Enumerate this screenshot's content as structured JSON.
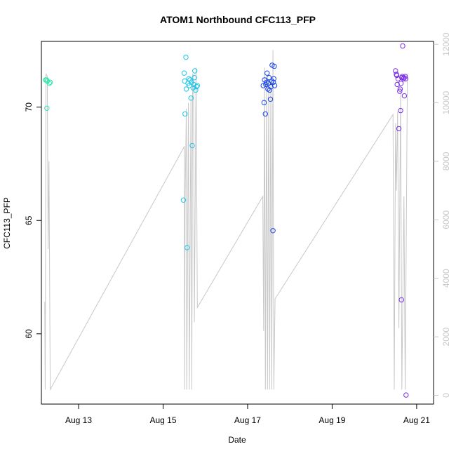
{
  "chart_data": {
    "type": "scatter",
    "title": "ATOM1 Northbound CFC113_PFP",
    "xlabel": "Date",
    "ylabel": "CFC113_PFP",
    "x_ticks": [
      "Aug 13",
      "Aug 15",
      "Aug 17",
      "Aug 19",
      "Aug 21"
    ],
    "y_left_ticks": [
      "60",
      "65",
      "70"
    ],
    "y_right_ticks": [
      "0",
      "2000",
      "4000",
      "6000",
      "8000",
      "10000",
      "12000"
    ],
    "y_left_range": [
      56.9,
      72.9
    ],
    "y_right_range": [
      -300,
      12100
    ],
    "x_range_days": [
      12.12,
      21.4
    ],
    "points": [
      {
        "x": 12.22,
        "y": 71.2,
        "color": "#29e8ac"
      },
      {
        "x": 12.24,
        "y": 71.2,
        "color": "#29e8ac"
      },
      {
        "x": 12.26,
        "y": 71.15,
        "color": "#29e8ac"
      },
      {
        "x": 12.25,
        "y": 69.95,
        "color": "#34e6b8"
      },
      {
        "x": 12.31,
        "y": 71.05,
        "color": "#29e8ac"
      },
      {
        "x": 12.33,
        "y": 71.1,
        "color": "#29e8ac"
      },
      {
        "x": 15.48,
        "y": 65.9,
        "color": "#1ec6e8"
      },
      {
        "x": 15.5,
        "y": 71.5,
        "color": "#1ec6e8"
      },
      {
        "x": 15.51,
        "y": 71.15,
        "color": "#1ec6e8"
      },
      {
        "x": 15.52,
        "y": 69.7,
        "color": "#1ec6e8"
      },
      {
        "x": 15.54,
        "y": 72.2,
        "color": "#1ec6e8"
      },
      {
        "x": 15.55,
        "y": 70.8,
        "color": "#1ec6e8"
      },
      {
        "x": 15.57,
        "y": 63.8,
        "color": "#1ec6e8"
      },
      {
        "x": 15.59,
        "y": 71.05,
        "color": "#1ec6e8"
      },
      {
        "x": 15.61,
        "y": 71.25,
        "color": "#1ec6e8"
      },
      {
        "x": 15.62,
        "y": 70.95,
        "color": "#1ec6e8"
      },
      {
        "x": 15.64,
        "y": 71.2,
        "color": "#1ec6e8"
      },
      {
        "x": 15.66,
        "y": 70.4,
        "color": "#1ec6e8"
      },
      {
        "x": 15.67,
        "y": 71.1,
        "color": "#1ec6e8"
      },
      {
        "x": 15.69,
        "y": 68.3,
        "color": "#1ec6e8"
      },
      {
        "x": 15.71,
        "y": 70.85,
        "color": "#1ec6e8"
      },
      {
        "x": 15.72,
        "y": 71.0,
        "color": "#1ec6e8"
      },
      {
        "x": 15.74,
        "y": 71.3,
        "color": "#1ec6e8"
      },
      {
        "x": 15.75,
        "y": 71.6,
        "color": "#1ec6e8"
      },
      {
        "x": 15.77,
        "y": 70.75,
        "color": "#1ec6e8"
      },
      {
        "x": 15.79,
        "y": 70.9,
        "color": "#1ec6e8"
      },
      {
        "x": 15.81,
        "y": 70.95,
        "color": "#1ec6e8"
      },
      {
        "x": 17.37,
        "y": 70.95,
        "color": "#1a44e6"
      },
      {
        "x": 17.39,
        "y": 70.2,
        "color": "#1a44e6"
      },
      {
        "x": 17.4,
        "y": 71.2,
        "color": "#1a44e6"
      },
      {
        "x": 17.42,
        "y": 69.7,
        "color": "#1a44e6"
      },
      {
        "x": 17.43,
        "y": 71.0,
        "color": "#1a44e6"
      },
      {
        "x": 17.45,
        "y": 71.1,
        "color": "#1a44e6"
      },
      {
        "x": 17.46,
        "y": 71.5,
        "color": "#1a44e6"
      },
      {
        "x": 17.48,
        "y": 70.8,
        "color": "#1a44e6"
      },
      {
        "x": 17.49,
        "y": 71.05,
        "color": "#1a44e6"
      },
      {
        "x": 17.51,
        "y": 71.3,
        "color": "#1a44e6"
      },
      {
        "x": 17.52,
        "y": 70.75,
        "color": "#1a44e6"
      },
      {
        "x": 17.54,
        "y": 70.35,
        "color": "#1a44e6"
      },
      {
        "x": 17.55,
        "y": 70.9,
        "color": "#1a44e6"
      },
      {
        "x": 17.57,
        "y": 71.15,
        "color": "#1a44e6"
      },
      {
        "x": 17.58,
        "y": 71.85,
        "color": "#1a44e6"
      },
      {
        "x": 17.6,
        "y": 64.55,
        "color": "#1a44e6"
      },
      {
        "x": 17.61,
        "y": 71.1,
        "color": "#1a44e6"
      },
      {
        "x": 17.62,
        "y": 71.25,
        "color": "#1a44e6"
      },
      {
        "x": 17.63,
        "y": 71.8,
        "color": "#1a44e6"
      },
      {
        "x": 17.64,
        "y": 70.95,
        "color": "#1a44e6"
      },
      {
        "x": 20.5,
        "y": 71.6,
        "color": "#7a2ee8"
      },
      {
        "x": 20.52,
        "y": 71.45,
        "color": "#7a2ee8"
      },
      {
        "x": 20.53,
        "y": 71.4,
        "color": "#7a2ee8"
      },
      {
        "x": 20.54,
        "y": 71.0,
        "color": "#7a2ee8"
      },
      {
        "x": 20.56,
        "y": 71.25,
        "color": "#7a2ee8"
      },
      {
        "x": 20.58,
        "y": 69.05,
        "color": "#7a2ee8"
      },
      {
        "x": 20.6,
        "y": 70.7,
        "color": "#7a2ee8"
      },
      {
        "x": 20.61,
        "y": 70.8,
        "color": "#7a2ee8"
      },
      {
        "x": 20.62,
        "y": 69.85,
        "color": "#7a2ee8"
      },
      {
        "x": 20.63,
        "y": 71.05,
        "color": "#7a2ee8"
      },
      {
        "x": 20.64,
        "y": 61.5,
        "color": "#7a2ee8"
      },
      {
        "x": 20.65,
        "y": 71.3,
        "color": "#7a2ee8"
      },
      {
        "x": 20.66,
        "y": 71.35,
        "color": "#7a2ee8"
      },
      {
        "x": 20.67,
        "y": 72.7,
        "color": "#7a2ee8"
      },
      {
        "x": 20.69,
        "y": 71.25,
        "color": "#7a2ee8"
      },
      {
        "x": 20.7,
        "y": 71.3,
        "color": "#7a2ee8"
      },
      {
        "x": 20.71,
        "y": 70.5,
        "color": "#7a2ee8"
      },
      {
        "x": 20.73,
        "y": 71.35,
        "color": "#7a2ee8"
      },
      {
        "x": 20.74,
        "y": 71.25,
        "color": "#7a2ee8"
      },
      {
        "x": 20.75,
        "y": 57.3,
        "color": "#7a2ee8"
      }
    ],
    "altitude_line": [
      [
        12.2,
        3200
      ],
      [
        12.21,
        200
      ],
      [
        12.23,
        11000
      ],
      [
        12.26,
        10900
      ],
      [
        12.28,
        5000
      ],
      [
        12.3,
        8000
      ],
      [
        12.33,
        200
      ],
      [
        15.5,
        8500
      ],
      [
        15.51,
        200
      ],
      [
        15.52,
        6500
      ],
      [
        15.55,
        9800
      ],
      [
        15.56,
        200
      ],
      [
        15.6,
        10000
      ],
      [
        15.62,
        200
      ],
      [
        15.66,
        10200
      ],
      [
        15.68,
        200
      ],
      [
        15.7,
        11000
      ],
      [
        15.72,
        10900
      ],
      [
        15.74,
        2500
      ],
      [
        15.78,
        11200
      ],
      [
        15.81,
        3000
      ],
      [
        17.36,
        6800
      ],
      [
        17.38,
        2200
      ],
      [
        17.4,
        11200
      ],
      [
        17.42,
        200
      ],
      [
        17.45,
        10600
      ],
      [
        17.47,
        200
      ],
      [
        17.5,
        10800
      ],
      [
        17.52,
        200
      ],
      [
        17.55,
        10900
      ],
      [
        17.57,
        200
      ],
      [
        17.6,
        11800
      ],
      [
        17.62,
        200
      ],
      [
        17.65,
        3300
      ],
      [
        20.44,
        9600
      ],
      [
        20.47,
        200
      ],
      [
        20.5,
        9300
      ],
      [
        20.52,
        7000
      ],
      [
        20.55,
        9700
      ],
      [
        20.58,
        2300
      ],
      [
        20.62,
        10400
      ],
      [
        20.65,
        200
      ],
      [
        20.7,
        6800
      ],
      [
        20.73,
        200
      ],
      [
        20.78,
        11000
      ]
    ]
  }
}
